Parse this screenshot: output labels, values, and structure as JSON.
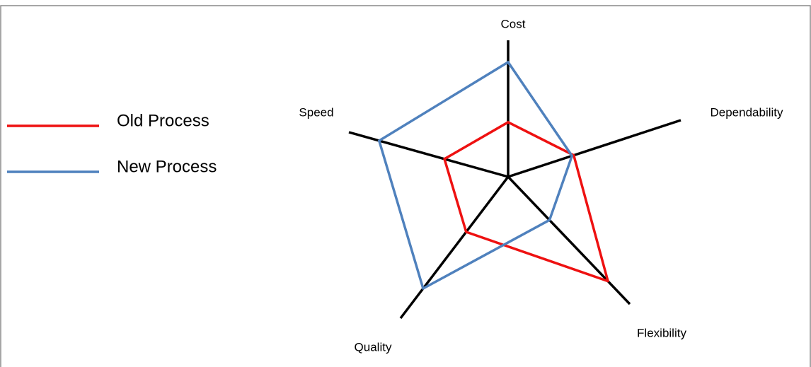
{
  "chart_data": {
    "type": "radar",
    "categories": [
      "Cost",
      "Dependability",
      "Flexibility",
      "Quality",
      "Speed"
    ],
    "rlim": [
      0,
      10
    ],
    "series": [
      {
        "name": "Old Process",
        "color": "#ee1111",
        "values": [
          4,
          3.8,
          8.2,
          3.9,
          4
        ]
      },
      {
        "name": "New Process",
        "color": "#4f81bd",
        "values": [
          8.4,
          3.7,
          3.4,
          7.9,
          8.1
        ]
      }
    ]
  }
}
